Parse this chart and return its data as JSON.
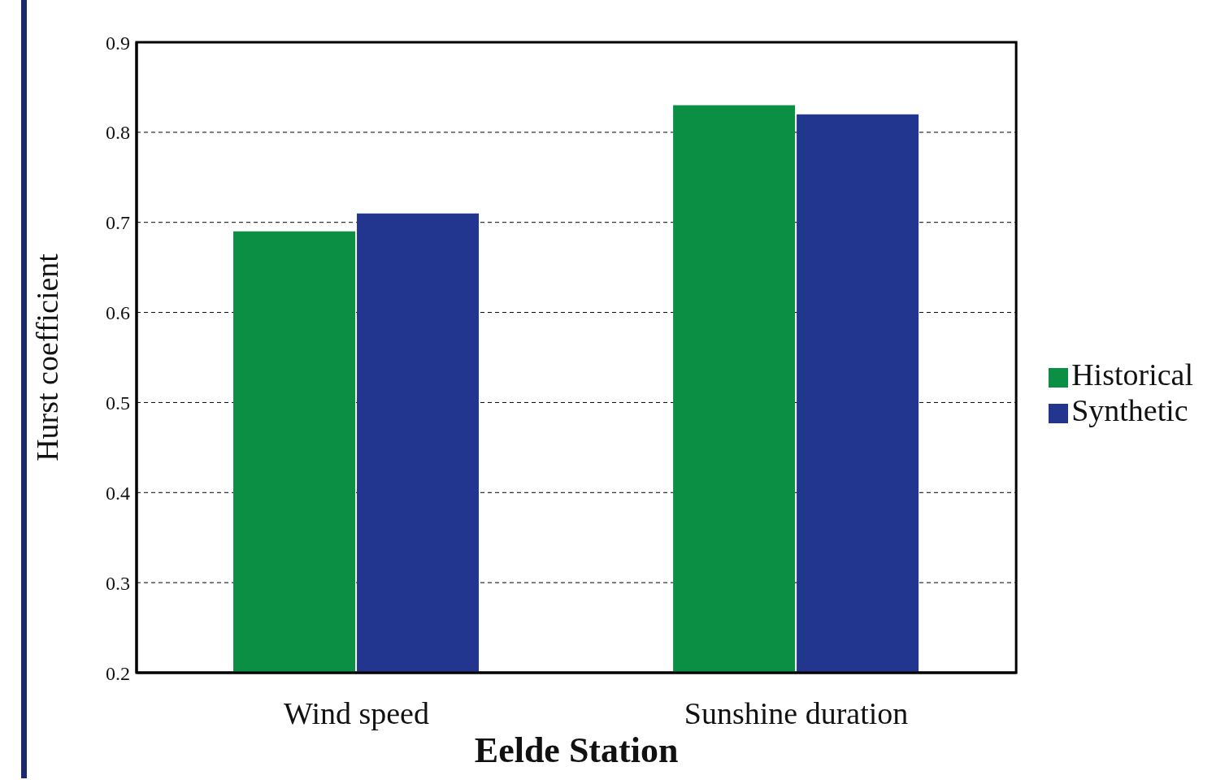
{
  "chart_data": {
    "type": "bar",
    "xlabel": "Eelde Station",
    "ylabel": "Hurst coefficient",
    "categories": [
      "Wind speed",
      "Sunshine duration"
    ],
    "series": [
      {
        "name": "Historical",
        "color": "#0a8f45",
        "values": [
          0.69,
          0.83
        ]
      },
      {
        "name": "Synthetic",
        "color": "#223690",
        "values": [
          0.71,
          0.82
        ]
      }
    ],
    "ylim": [
      0.2,
      0.9
    ],
    "yticks": [
      0.2,
      0.3,
      0.4,
      0.5,
      0.6,
      0.7,
      0.8,
      0.9
    ],
    "grid": "y",
    "legend": "right"
  }
}
